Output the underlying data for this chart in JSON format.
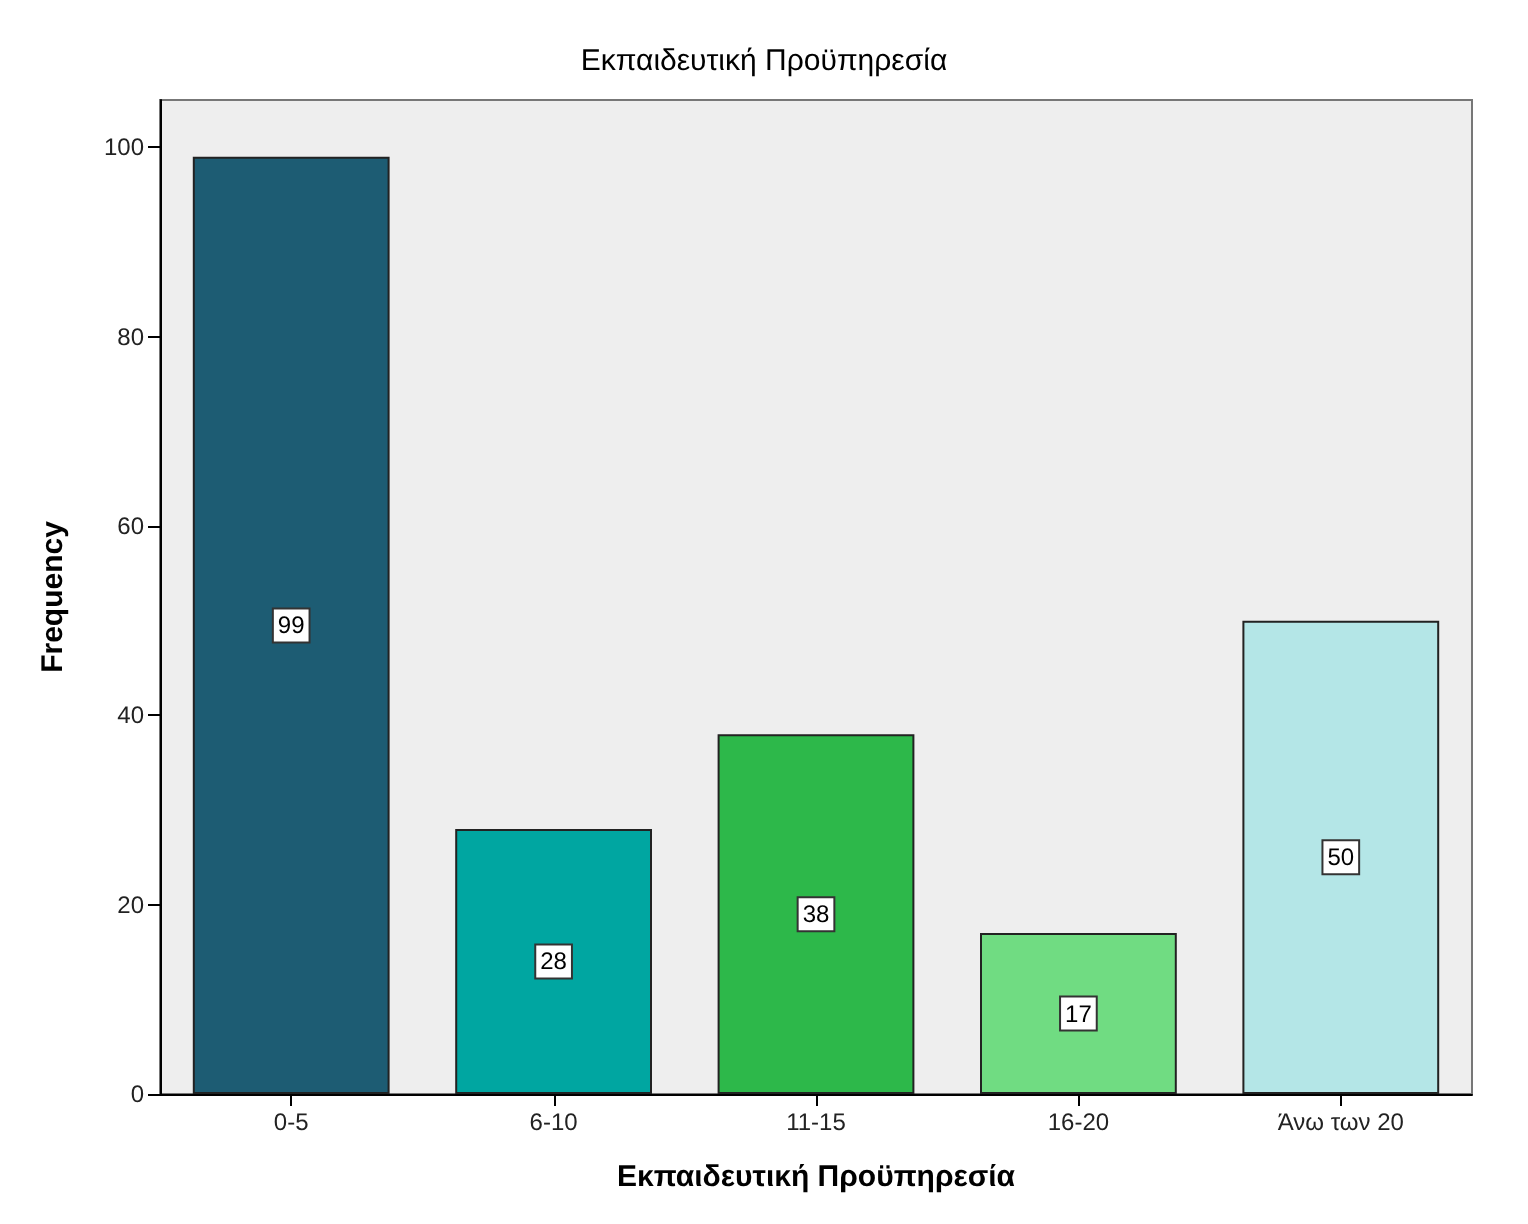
{
  "chart_data": {
    "type": "bar",
    "title": "Εκπαιδευτική Προϋπηρεσία",
    "xlabel": "Εκπαιδευτική Προϋπηρεσία",
    "ylabel": "Frequency",
    "categories": [
      "0-5",
      "6-10",
      "11-15",
      "16-20",
      "Άνω των 20"
    ],
    "values": [
      99,
      28,
      38,
      17,
      50
    ],
    "colors": [
      "#1d5c73",
      "#00a6a1",
      "#2db84a",
      "#70dc82",
      "#b4e6e7"
    ],
    "ylim": [
      0,
      105
    ],
    "yticks": [
      0,
      20,
      40,
      60,
      80,
      100
    ],
    "grid": false,
    "data_labels": true
  }
}
